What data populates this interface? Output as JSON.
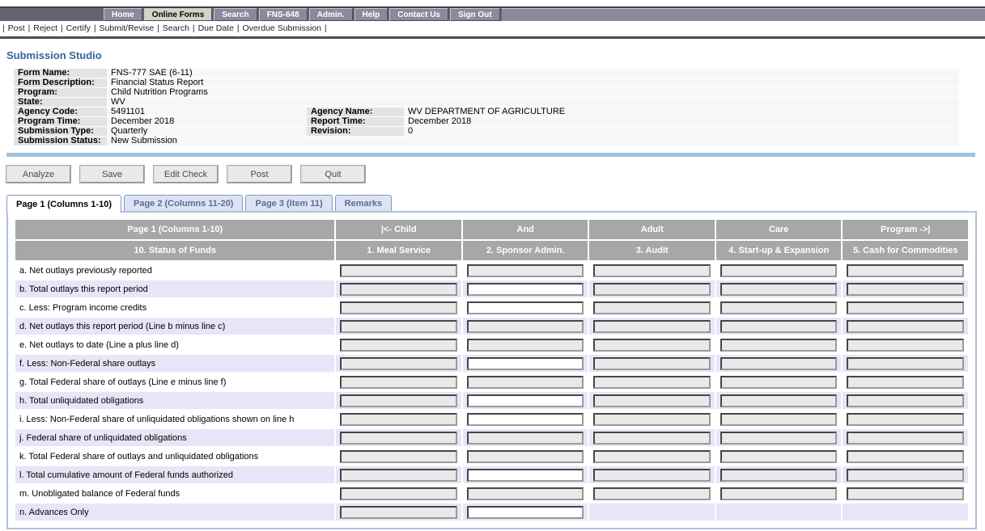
{
  "topnav": {
    "items": [
      {
        "label": "Home",
        "active": false
      },
      {
        "label": "Online Forms",
        "active": true
      },
      {
        "label": "Search",
        "active": false
      },
      {
        "label": "FNS-648",
        "active": false
      },
      {
        "label": "Admin.",
        "active": false
      },
      {
        "label": "Help",
        "active": false
      },
      {
        "label": "Contact Us",
        "active": false
      },
      {
        "label": "Sign Out",
        "active": false
      }
    ]
  },
  "menubar": {
    "separator": "|",
    "items": [
      "Post",
      "Reject",
      "Certify",
      "Submit/Revise",
      "Search",
      "Due Date",
      "Overdue Submission"
    ]
  },
  "page_title": "Submission Studio",
  "form_info": {
    "rows": [
      {
        "label1": "Form Name:",
        "value1": "FNS-777 SAE (6-11)",
        "label2": "",
        "value2": ""
      },
      {
        "label1": "Form Description:",
        "value1": "Financial Status Report",
        "label2": "",
        "value2": ""
      },
      {
        "label1": "Program:",
        "value1": "Child Nutrition Programs",
        "label2": "",
        "value2": ""
      },
      {
        "label1": "State:",
        "value1": "WV",
        "label2": "",
        "value2": ""
      },
      {
        "label1": "Agency Code:",
        "value1": "5491101",
        "label2": "Agency Name:",
        "value2": "WV DEPARTMENT OF AGRICULTURE"
      },
      {
        "label1": "Program Time:",
        "value1": "December 2018",
        "label2": "Report Time:",
        "value2": "December 2018"
      },
      {
        "label1": "Submission Type:",
        "value1": "Quarterly",
        "label2": "Revision:",
        "value2": "0"
      },
      {
        "label1": "Submission Status:",
        "value1": "New Submission",
        "label2": "",
        "value2": ""
      }
    ]
  },
  "toolbar": {
    "buttons": [
      "Analyze",
      "Save",
      "Edit Check",
      "Post",
      "Quit"
    ]
  },
  "tabs": [
    {
      "label": "Page 1 (Columns 1-10)",
      "active": true
    },
    {
      "label": "Page 2 (Columns 11-20)",
      "active": false
    },
    {
      "label": "Page 3 (Item 11)",
      "active": false
    },
    {
      "label": "Remarks",
      "active": false
    }
  ],
  "grid": {
    "header_row1": [
      "Page 1 (Columns 1-10)",
      "|<- Child",
      "And",
      "Adult",
      "Care",
      "Program ->|"
    ],
    "header_row2": [
      "10. Status of Funds",
      "1. Meal Service",
      "2. Sponsor Admin.",
      "3. Audit",
      "4. Start-up & Expansion",
      "5. Cash for Commodities"
    ],
    "rows": [
      {
        "label": "a. Net outlays previously reported",
        "inputs": [
          "disabled",
          "disabled",
          "disabled",
          "disabled",
          "disabled"
        ]
      },
      {
        "label": "b. Total outlays this report period",
        "inputs": [
          "disabled",
          "editable",
          "disabled",
          "disabled",
          "disabled"
        ]
      },
      {
        "label": "c. Less: Program income credits",
        "inputs": [
          "disabled",
          "editable",
          "disabled",
          "disabled",
          "disabled"
        ]
      },
      {
        "label": "d. Net outlays this report period (Line b minus line c)",
        "inputs": [
          "disabled",
          "disabled",
          "disabled",
          "disabled",
          "disabled"
        ]
      },
      {
        "label": "e. Net outlays to date (Line a plus line d)",
        "inputs": [
          "disabled",
          "disabled",
          "disabled",
          "disabled",
          "disabled"
        ]
      },
      {
        "label": "f. Less: Non-Federal share outlays",
        "inputs": [
          "disabled",
          "editable",
          "disabled",
          "disabled",
          "disabled"
        ]
      },
      {
        "label": "g. Total Federal share of outlays (Line e minus line f)",
        "inputs": [
          "disabled",
          "disabled",
          "disabled",
          "disabled",
          "disabled"
        ]
      },
      {
        "label": "h. Total unliquidated obligations",
        "inputs": [
          "disabled",
          "editable",
          "disabled",
          "disabled",
          "disabled"
        ]
      },
      {
        "label": "i. Less: Non-Federal share of unliquidated obligations shown on line h",
        "inputs": [
          "disabled",
          "editable",
          "disabled",
          "disabled",
          "disabled"
        ]
      },
      {
        "label": "j. Federal share of unliquidated obligations",
        "inputs": [
          "disabled",
          "disabled",
          "disabled",
          "disabled",
          "disabled"
        ]
      },
      {
        "label": "k. Total Federal share of outlays and unliquidated obligations",
        "inputs": [
          "disabled",
          "disabled",
          "disabled",
          "disabled",
          "disabled"
        ]
      },
      {
        "label": "l. Total cumulative amount of Federal funds authorized",
        "inputs": [
          "disabled",
          "editable",
          "disabled",
          "disabled",
          "disabled"
        ]
      },
      {
        "label": "m. Unobligated balance of Federal funds",
        "inputs": [
          "disabled",
          "disabled",
          "disabled",
          "disabled",
          "disabled"
        ]
      },
      {
        "label": "n. Advances Only",
        "inputs": [
          "disabled",
          "editable",
          "none",
          "none",
          "none"
        ]
      }
    ],
    "input_value": ""
  },
  "colors": {
    "title_blue": "#336699",
    "nav_button": "#8a8a9c",
    "nav_active": "#d6d2c8",
    "grid_header_gray": "#a7a7a7",
    "row_alt_lavender": "#e6e6f8",
    "accent_bar_blue": "#a3c0e0",
    "panel_border_blue": "#aec2e0",
    "disabled_input": "#e9e9e9"
  }
}
